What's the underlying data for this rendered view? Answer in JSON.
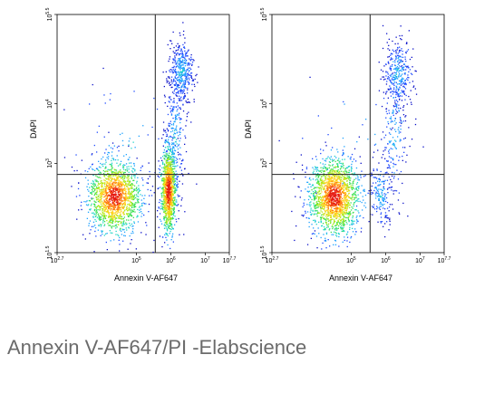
{
  "caption": "Annexin V-AF647/PI -Elabscience",
  "chart_data": [
    {
      "type": "scatter",
      "subtype": "flow-cytometry-density-dot-plot",
      "xlabel": "Annexin V-AF647",
      "ylabel": "DAPI",
      "x_scale": "log",
      "y_scale": "log",
      "xlim": [
        501,
        5011872
      ],
      "ylim": [
        316,
        316228
      ],
      "x_ticks": [
        {
          "base": "10",
          "exp": "2.7",
          "value": 501
        },
        {
          "base": "10",
          "exp": "5",
          "value": 100000
        },
        {
          "base": "10",
          "exp": "6",
          "value": 1000000
        },
        {
          "base": "10",
          "exp": "7",
          "value": 10000000
        },
        {
          "base": "10",
          "exp": "7.7",
          "value": 50118723
        }
      ],
      "y_ticks": [
        {
          "base": "10",
          "exp": "1.5",
          "value": 31.6
        },
        {
          "base": "10",
          "exp": "3",
          "value": 1000
        },
        {
          "base": "10",
          "exp": "4",
          "value": 10000
        },
        {
          "base": "10",
          "exp": "5.5",
          "value": 316228
        }
      ],
      "gates": {
        "x": 355000,
        "y": 650
      },
      "populations": [
        {
          "cx": 4.35,
          "cy": 2.45,
          "sx": 0.38,
          "sy": 0.3,
          "n": 1500,
          "hot": true
        },
        {
          "cx": 5.92,
          "cy": 2.55,
          "sx": 0.11,
          "sy": 0.36,
          "n": 1100,
          "hot": true
        },
        {
          "cx": 6.3,
          "cy": 4.55,
          "sx": 0.18,
          "sy": 0.25,
          "n": 420,
          "hot": false
        },
        {
          "cx": 6.1,
          "cy": 3.4,
          "sx": 0.15,
          "sy": 0.55,
          "n": 250,
          "hot": false
        },
        {
          "cx": 4.8,
          "cy": 3.3,
          "sx": 0.8,
          "sy": 0.6,
          "n": 60,
          "hot": false
        }
      ]
    },
    {
      "type": "scatter",
      "subtype": "flow-cytometry-density-dot-plot",
      "xlabel": "Annexin V-AF647",
      "ylabel": "DAPI",
      "x_scale": "log",
      "y_scale": "log",
      "xlim": [
        501,
        5011872
      ],
      "ylim": [
        316,
        316228
      ],
      "x_ticks": [
        {
          "base": "10",
          "exp": "2.7",
          "value": 501
        },
        {
          "base": "10",
          "exp": "5",
          "value": 100000
        },
        {
          "base": "10",
          "exp": "6",
          "value": 1000000
        },
        {
          "base": "10",
          "exp": "7",
          "value": 10000000
        },
        {
          "base": "10",
          "exp": "7.7",
          "value": 50118723
        }
      ],
      "y_ticks": [
        {
          "base": "10",
          "exp": "1.5",
          "value": 31.6
        },
        {
          "base": "10",
          "exp": "3",
          "value": 1000
        },
        {
          "base": "10",
          "exp": "4",
          "value": 10000
        },
        {
          "base": "10",
          "exp": "5.5",
          "value": 316228
        }
      ],
      "gates": {
        "x": 355000,
        "y": 650
      },
      "populations": [
        {
          "cx": 4.5,
          "cy": 2.45,
          "sx": 0.36,
          "sy": 0.32,
          "n": 1700,
          "hot": true
        },
        {
          "cx": 5.85,
          "cy": 2.5,
          "sx": 0.16,
          "sy": 0.28,
          "n": 170,
          "hot": false
        },
        {
          "cx": 6.35,
          "cy": 4.5,
          "sx": 0.2,
          "sy": 0.28,
          "n": 320,
          "hot": false
        },
        {
          "cx": 6.25,
          "cy": 3.5,
          "sx": 0.18,
          "sy": 0.55,
          "n": 200,
          "hot": false
        },
        {
          "cx": 5.0,
          "cy": 3.3,
          "sx": 0.9,
          "sy": 0.7,
          "n": 45,
          "hot": false
        }
      ]
    }
  ]
}
